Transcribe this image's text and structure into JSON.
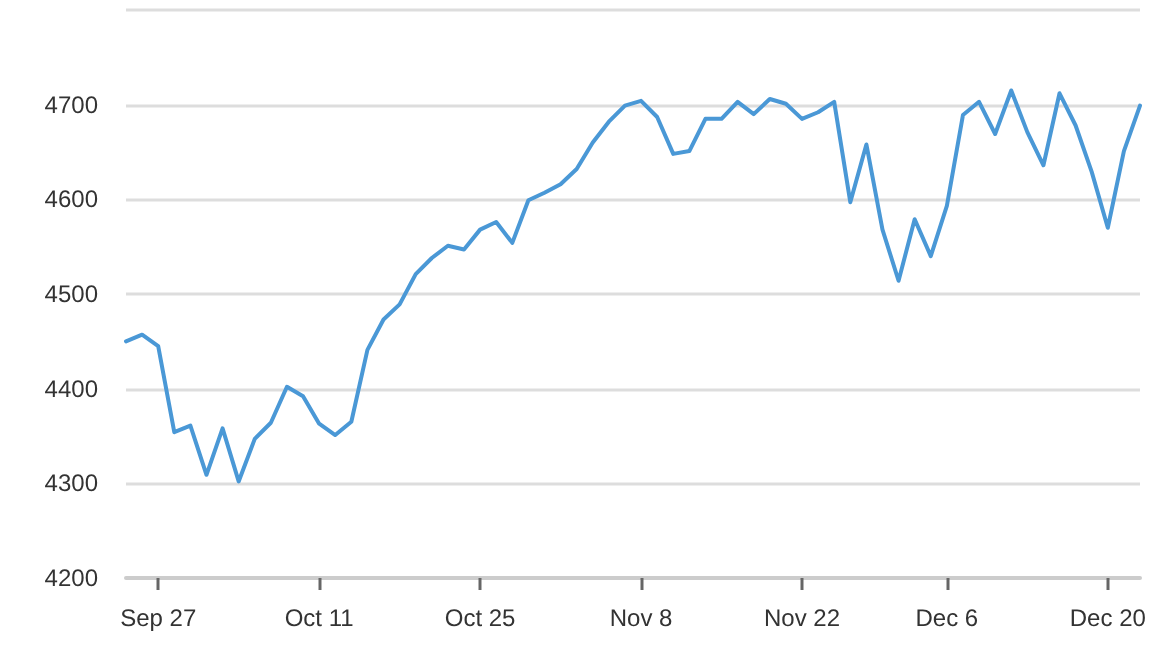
{
  "chart_data": {
    "type": "line",
    "categories": [
      null,
      null,
      "Sep 27",
      null,
      null,
      null,
      null,
      null,
      null,
      null,
      null,
      null,
      "Oct 11",
      null,
      null,
      null,
      null,
      null,
      null,
      null,
      null,
      null,
      "Oct 25",
      null,
      null,
      null,
      null,
      null,
      null,
      null,
      null,
      null,
      "Nov 8",
      null,
      null,
      null,
      null,
      null,
      null,
      null,
      null,
      null,
      "Nov 22",
      null,
      null,
      null,
      null,
      null,
      null,
      null,
      null,
      "Dec 6",
      null,
      null,
      null,
      null,
      null,
      null,
      null,
      null,
      null,
      "Dec 20",
      null,
      null
    ],
    "series": [
      {
        "color": "#4a98d6",
        "values": [
          4450,
          4457,
          4445,
          4354,
          4361,
          4309,
          4358,
          4302,
          4347,
          4364,
          4402,
          4392,
          4363,
          4351,
          4365,
          4441,
          4473,
          4489,
          4521,
          4538,
          4551,
          4547,
          4568,
          4576,
          4554,
          4599,
          4607,
          4616,
          4632,
          4660,
          4682,
          4699,
          4704,
          4687,
          4648,
          4651,
          4685,
          4685,
          4703,
          4690,
          4706,
          4701,
          4685,
          4692,
          4703,
          4597,
          4658,
          4568,
          4514,
          4579,
          4540,
          4593,
          4689,
          4703,
          4669,
          4715,
          4671,
          4636,
          4712,
          4678,
          4629,
          4570,
          4651,
          4699
        ]
      }
    ],
    "ylim": [
      4200,
      4800
    ],
    "yticks": [
      4200,
      4300,
      4400,
      4500,
      4600,
      4700,
      {
        "value": 4800,
        "label": null
      }
    ],
    "grid": "y",
    "marker": "none",
    "line_style": "solid"
  }
}
